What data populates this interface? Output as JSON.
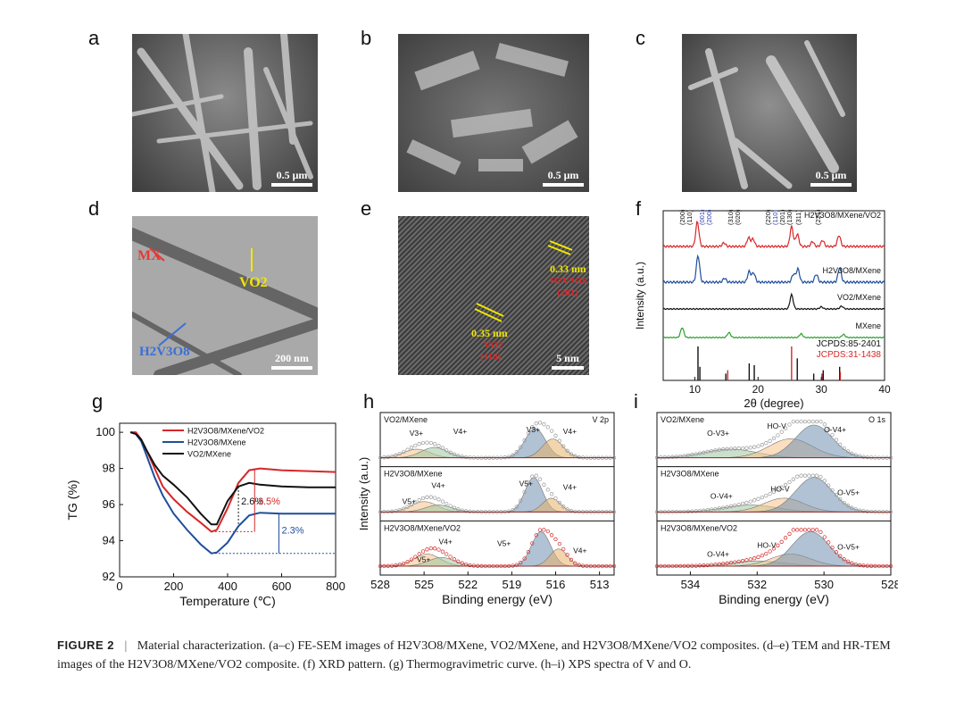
{
  "panels": {
    "a": {
      "letter": "a",
      "scale": "0.5 μm"
    },
    "b": {
      "letter": "b",
      "scale": "0.5 μm"
    },
    "c": {
      "letter": "c",
      "scale": "0.5 μm"
    },
    "d": {
      "letter": "d",
      "scale": "200 nm",
      "labels": {
        "mx": "MX",
        "vo2": "VO2",
        "hvo": "H2V3O8"
      }
    },
    "e": {
      "letter": "e",
      "scale": "5 nm",
      "d1": "0.33 nm",
      "d1_phase": "H2V3O8",
      "d1_plane": "(201)",
      "d2": "0.35 nm",
      "d2_phase": "VO2",
      "d2_plane": "(110)"
    },
    "f": {
      "letter": "f"
    },
    "g": {
      "letter": "g"
    },
    "h": {
      "letter": "h"
    },
    "i": {
      "letter": "i"
    }
  },
  "chart_data": [
    {
      "id": "f",
      "type": "line",
      "xlabel": "2θ (degree)",
      "ylabel": "Intensity (a.u.)",
      "xlim": [
        5,
        40
      ],
      "xticks": [
        10,
        20,
        30,
        40
      ],
      "series": [
        {
          "name": "H2V3O8/MXene/VO2",
          "color": "#d62728",
          "peaks": [
            [
              10.4,
              1.0
            ],
            [
              14.6,
              0.15
            ],
            [
              18.5,
              0.35
            ],
            [
              19.2,
              0.3
            ],
            [
              25.3,
              0.8
            ],
            [
              26.2,
              0.5
            ],
            [
              28.6,
              0.2
            ],
            [
              30.2,
              0.25
            ],
            [
              32.8,
              0.45
            ]
          ]
        },
        {
          "name": "H2V3O8/MXene",
          "color": "#1f4e9c",
          "peaks": [
            [
              10.5,
              1.0
            ],
            [
              14.7,
              0.15
            ],
            [
              18.6,
              0.4
            ],
            [
              19.3,
              0.35
            ],
            [
              25.6,
              0.3
            ],
            [
              26.3,
              0.5
            ],
            [
              29.2,
              0.3
            ],
            [
              32.9,
              0.55
            ]
          ]
        },
        {
          "name": "VO2/MXene",
          "color": "#111111",
          "peaks": [
            [
              25.3,
              1.0
            ],
            [
              30.0,
              0.15
            ],
            [
              33.2,
              0.2
            ]
          ]
        },
        {
          "name": "MXene",
          "color": "#2ca02c",
          "peaks": [
            [
              8.0,
              0.8
            ],
            [
              15.4,
              0.4
            ],
            [
              26.8,
              0.3
            ],
            [
              33.5,
              0.25
            ]
          ]
        }
      ],
      "peak_labels": [
        "(200)",
        "(110)",
        "(001)",
        "(200)",
        "(310)",
        "(020)",
        "(220)",
        "(110)",
        "(201)",
        "(130)",
        "(311)",
        "(221)"
      ],
      "references": [
        {
          "name": "JCPDS:85-2401",
          "color": "#111111",
          "lines": [
            [
              10.5,
              1.0
            ],
            [
              10.8,
              0.4
            ],
            [
              14.9,
              0.2
            ],
            [
              18.6,
              0.5
            ],
            [
              19.4,
              0.45
            ],
            [
              26.2,
              0.65
            ],
            [
              28.8,
              0.2
            ],
            [
              30.3,
              0.3
            ],
            [
              32.9,
              0.4
            ]
          ]
        },
        {
          "name": "JCPDS:31-1438",
          "color": "#d62728",
          "lines": [
            [
              15.2,
              0.3
            ],
            [
              25.3,
              1.0
            ],
            [
              30.1,
              0.2
            ],
            [
              33.0,
              0.25
            ]
          ]
        }
      ]
    },
    {
      "id": "g",
      "type": "line",
      "xlabel": "Temperature (℃)",
      "ylabel": "TG (%)",
      "xlim": [
        0,
        800
      ],
      "ylim": [
        92,
        100.5
      ],
      "xticks": [
        0,
        200,
        400,
        600,
        800
      ],
      "yticks": [
        92,
        94,
        96,
        98,
        100
      ],
      "series": [
        {
          "name": "H2V3O8/MXene/VO2",
          "color": "#d62728",
          "x": [
            40,
            60,
            80,
            100,
            130,
            160,
            200,
            250,
            300,
            340,
            360,
            400,
            440,
            480,
            520,
            600,
            700,
            800
          ],
          "y": [
            100,
            100,
            99.6,
            99.0,
            98.0,
            97.0,
            96.3,
            95.6,
            95.0,
            94.5,
            94.6,
            95.8,
            97.2,
            97.9,
            98.0,
            97.9,
            97.85,
            97.8
          ]
        },
        {
          "name": "H2V3O8/MXene",
          "color": "#1f4e9c",
          "x": [
            40,
            60,
            80,
            100,
            130,
            160,
            200,
            250,
            300,
            340,
            360,
            400,
            440,
            480,
            520,
            600,
            700,
            800
          ],
          "y": [
            100,
            99.9,
            99.5,
            98.7,
            97.5,
            96.5,
            95.5,
            94.6,
            93.8,
            93.3,
            93.35,
            93.9,
            94.8,
            95.4,
            95.55,
            95.5,
            95.5,
            95.5
          ]
        },
        {
          "name": "VO2/MXene",
          "color": "#111111",
          "x": [
            40,
            60,
            80,
            100,
            130,
            160,
            200,
            250,
            300,
            340,
            360,
            400,
            440,
            480,
            520,
            600,
            700,
            800
          ],
          "y": [
            100,
            99.9,
            99.6,
            99.0,
            98.2,
            97.6,
            97.1,
            96.4,
            95.5,
            94.9,
            94.9,
            96.2,
            97.0,
            97.2,
            97.1,
            97.0,
            96.95,
            96.95
          ]
        }
      ],
      "annotations": [
        "2.6%",
        "3.5%",
        "2.3%"
      ]
    },
    {
      "id": "h",
      "type": "line",
      "xlabel": "Binding energy (eV)",
      "ylabel": "Intensity (a.u.)",
      "xlim": [
        528,
        512
      ],
      "xticks": [
        528,
        525,
        522,
        519,
        516,
        513
      ],
      "title": "V 2p",
      "subpanels": [
        {
          "name": "VO2/MXene",
          "labels": [
            "V3+",
            "V4+",
            "V3+",
            "V4+"
          ]
        },
        {
          "name": "H2V3O8/MXene",
          "labels": [
            "V4+",
            "V5+",
            "V5+",
            "V4+"
          ]
        },
        {
          "name": "H2V3O8/MXene/VO2",
          "labels": [
            "V4+",
            "V5+",
            "V5+",
            "V4+"
          ]
        }
      ]
    },
    {
      "id": "i",
      "type": "line",
      "xlabel": "Binding energy (eV)",
      "xlim": [
        535,
        528
      ],
      "xticks": [
        534,
        532,
        530,
        528
      ],
      "title": "O 1s",
      "subpanels": [
        {
          "name": "VO2/MXene",
          "labels": [
            "O-V3+",
            "HO-V",
            "O-V4+"
          ]
        },
        {
          "name": "H2V3O8/MXene",
          "labels": [
            "O-V4+",
            "HO-V",
            "O-V5+"
          ]
        },
        {
          "name": "H2V3O8/MXene/VO2",
          "labels": [
            "O-V4+",
            "HO-V",
            "O-V5+"
          ]
        }
      ]
    }
  ],
  "caption": {
    "label": "FIGURE 2",
    "separator": "|",
    "text": "Material characterization. (a–c) FE-SEM images of H2V3O8/MXene, VO2/MXene, and H2V3O8/MXene/VO2 composites. (d–e) TEM and HR-TEM images of the H2V3O8/MXene/VO2 composite. (f) XRD pattern. (g) Thermogravimetric curve. (h–i) XPS spectra of V and O."
  }
}
